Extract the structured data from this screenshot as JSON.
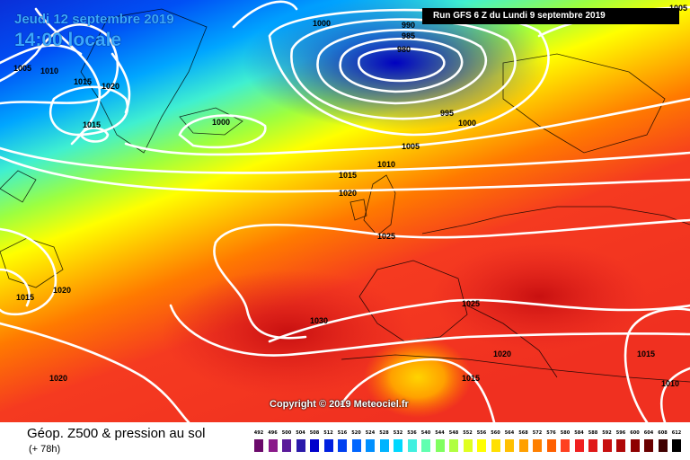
{
  "header": {
    "date": "Jeudi 12 septembre 2019",
    "time": "14:00 locale",
    "run": "Run GFS 6 Z du Lundi 9 septembre 2019"
  },
  "copyright": "Copyright © 2019 Meteociel.fr",
  "footer": {
    "title": "Géop. Z500 & pression au sol",
    "lead": "(+ 78h)"
  },
  "isobar_labels": [
    "1005",
    "990",
    "985",
    "980",
    "1000",
    "1005",
    "1010",
    "1015",
    "1020",
    "1015",
    "1000",
    "995",
    "1000",
    "1005",
    "1010",
    "1015",
    "1020",
    "1025",
    "1015",
    "1020",
    "1030",
    "1025",
    "1020",
    "1015",
    "1020",
    "1015",
    "1010"
  ],
  "legend": {
    "labels": [
      "492",
      "496",
      "500",
      "504",
      "508",
      "512",
      "516",
      "520",
      "524",
      "528",
      "532",
      "536",
      "540",
      "544",
      "548",
      "552",
      "556",
      "560",
      "564",
      "568",
      "572",
      "576",
      "580",
      "584",
      "588",
      "592",
      "596",
      "600",
      "604",
      "608",
      "612"
    ],
    "colors": [
      "#6b0a6b",
      "#8a1a8a",
      "#5a1a9a",
      "#2a1aaa",
      "#0000cc",
      "#0020e0",
      "#0040f0",
      "#0066ff",
      "#0090ff",
      "#00b4ff",
      "#00d8ff",
      "#40f0e0",
      "#60ffb0",
      "#80ff60",
      "#b0ff40",
      "#e0ff20",
      "#ffff00",
      "#ffe000",
      "#ffc000",
      "#ffa000",
      "#ff8000",
      "#ff6000",
      "#ff4020",
      "#f02020",
      "#e01818",
      "#c81010",
      "#b00808",
      "#8e0000",
      "#6a0000",
      "#400000",
      "#000000"
    ]
  }
}
